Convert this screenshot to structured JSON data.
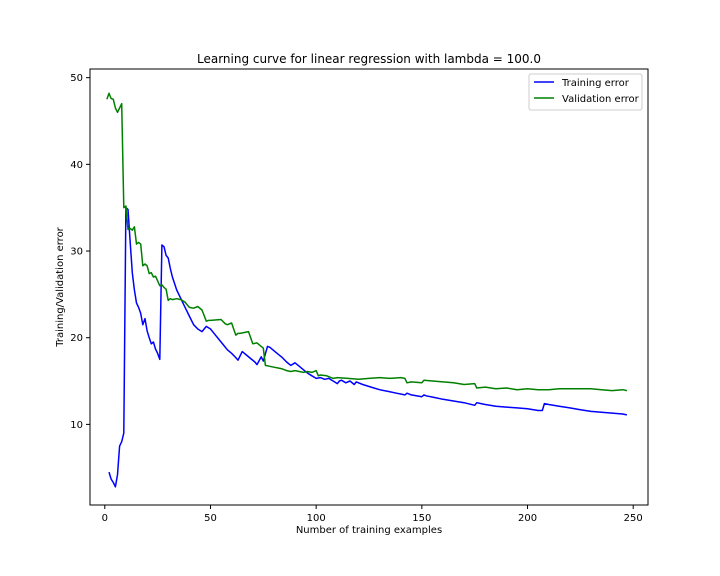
{
  "chart_data": {
    "type": "line",
    "title": "Learning curve for linear regression with lambda = 100.0",
    "xlabel": "Number of training examples",
    "ylabel": "Training/Validation error",
    "xlim": [
      -7,
      257
    ],
    "ylim": [
      0.7,
      51.0
    ],
    "xticks": [
      "0",
      "50",
      "100",
      "150",
      "200",
      "250"
    ],
    "xtick_values": [
      0,
      50,
      100,
      150,
      200,
      250
    ],
    "yticks": [
      "10",
      "20",
      "30",
      "40",
      "50"
    ],
    "ytick_values": [
      10,
      20,
      30,
      40,
      50
    ],
    "grid": false,
    "legend_position": "top-right",
    "series": [
      {
        "name": "Training error",
        "color": "#0000ff",
        "x": [
          2,
          3,
          4,
          5,
          6,
          7,
          8,
          9,
          10,
          11,
          12,
          13,
          14,
          15,
          16,
          17,
          18,
          19,
          20,
          21,
          22,
          23,
          24,
          25,
          26,
          27,
          28,
          29,
          30,
          31,
          32,
          34,
          36,
          38,
          40,
          42,
          44,
          46,
          48,
          50,
          52,
          54,
          56,
          58,
          60,
          62,
          63,
          65,
          67,
          69,
          71,
          72,
          74,
          75,
          77,
          78,
          80,
          82,
          84,
          86,
          88,
          90,
          92,
          94,
          96,
          98,
          100,
          102,
          104,
          106,
          108,
          110,
          111,
          112,
          114,
          116,
          118,
          119,
          122,
          126,
          130,
          134,
          138,
          142,
          143,
          145,
          150,
          151,
          152,
          156,
          160,
          165,
          170,
          175,
          176,
          178,
          180,
          185,
          190,
          195,
          200,
          205,
          207,
          208,
          210,
          215,
          220,
          225,
          230,
          235,
          240,
          245,
          247
        ],
        "values": [
          4.5,
          3.7,
          3.3,
          2.8,
          4.2,
          7.5,
          8.0,
          9.0,
          35.0,
          34.8,
          31.0,
          27.5,
          25.5,
          24.0,
          23.5,
          22.8,
          21.5,
          22.2,
          20.8,
          20.0,
          19.3,
          19.5,
          18.7,
          18.2,
          17.5,
          30.7,
          30.5,
          29.5,
          29.2,
          28.0,
          27.0,
          25.5,
          24.5,
          23.5,
          22.5,
          21.5,
          21.0,
          20.7,
          21.3,
          21.0,
          20.4,
          19.8,
          19.2,
          18.6,
          18.2,
          17.7,
          17.4,
          18.4,
          18.0,
          17.6,
          17.2,
          16.9,
          17.8,
          17.3,
          19.0,
          18.9,
          18.5,
          18.1,
          17.7,
          17.2,
          16.8,
          17.1,
          16.7,
          16.3,
          15.9,
          15.6,
          15.3,
          15.4,
          15.2,
          15.3,
          15.0,
          14.7,
          15.0,
          15.1,
          14.8,
          15.0,
          14.6,
          14.9,
          14.6,
          14.3,
          14.0,
          13.8,
          13.6,
          13.4,
          13.6,
          13.4,
          13.2,
          13.4,
          13.3,
          13.1,
          12.9,
          12.7,
          12.5,
          12.2,
          12.5,
          12.4,
          12.3,
          12.1,
          12.0,
          11.9,
          11.8,
          11.6,
          11.6,
          12.4,
          12.3,
          12.1,
          11.9,
          11.7,
          11.5,
          11.4,
          11.3,
          11.2,
          11.1
        ]
      },
      {
        "name": "Validation error",
        "color": "#008000",
        "x": [
          1,
          2,
          3,
          4,
          5,
          6,
          7,
          8,
          9,
          10,
          11,
          12,
          13,
          14,
          15,
          16,
          17,
          18,
          19,
          20,
          21,
          22,
          23,
          24,
          26,
          27,
          28,
          29,
          30,
          31,
          32,
          34,
          36,
          38,
          40,
          42,
          44,
          46,
          48,
          49,
          50,
          55,
          57,
          58,
          60,
          62,
          63,
          64,
          66,
          68,
          70,
          72,
          74,
          75,
          76,
          78,
          80,
          82,
          84,
          86,
          88,
          90,
          92,
          94,
          96,
          98,
          100,
          101,
          102,
          105,
          108,
          110,
          115,
          120,
          125,
          130,
          135,
          140,
          142,
          143,
          145,
          150,
          151,
          155,
          160,
          165,
          170,
          175,
          176,
          180,
          185,
          190,
          195,
          200,
          205,
          210,
          215,
          220,
          225,
          230,
          235,
          240,
          245,
          247
        ],
        "values": [
          47.5,
          48.2,
          47.6,
          47.5,
          46.5,
          46.0,
          46.5,
          47.0,
          35.0,
          35.2,
          32.5,
          32.6,
          32.4,
          32.8,
          30.8,
          31.0,
          30.8,
          28.3,
          28.5,
          28.3,
          27.4,
          27.5,
          27.0,
          27.1,
          26.0,
          26.1,
          25.8,
          25.6,
          24.3,
          24.5,
          24.4,
          24.5,
          24.4,
          24.1,
          23.5,
          23.4,
          23.6,
          23.2,
          21.9,
          22.0,
          22.0,
          22.1,
          21.6,
          21.5,
          21.7,
          20.3,
          20.5,
          20.5,
          20.6,
          20.7,
          19.3,
          19.4,
          19.0,
          18.8,
          16.8,
          16.7,
          16.6,
          16.5,
          16.4,
          16.2,
          16.1,
          16.2,
          16.1,
          16.0,
          16.1,
          16.0,
          16.2,
          15.6,
          15.7,
          15.6,
          15.3,
          15.4,
          15.3,
          15.2,
          15.3,
          15.4,
          15.3,
          15.4,
          15.3,
          14.8,
          14.9,
          14.8,
          15.1,
          15.0,
          14.9,
          14.8,
          14.6,
          14.7,
          14.2,
          14.3,
          14.1,
          14.2,
          14.0,
          14.1,
          14.0,
          14.0,
          14.1,
          14.1,
          14.1,
          14.1,
          14.0,
          13.9,
          14.0,
          13.9
        ]
      }
    ]
  }
}
